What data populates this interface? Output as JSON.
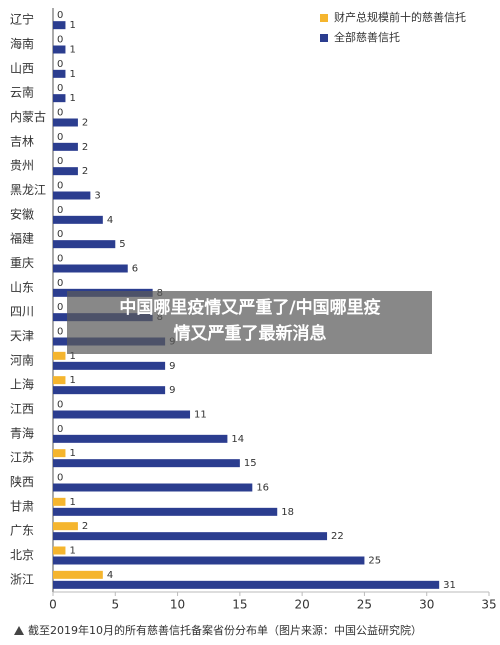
{
  "chart_data": {
    "type": "hbar",
    "categories": [
      "辽宁",
      "海南",
      "山西",
      "云南",
      "内蒙古",
      "吉林",
      "贵州",
      "黑龙江",
      "安徽",
      "福建",
      "重庆",
      "山东",
      "四川",
      "天津",
      "河南",
      "上海",
      "江西",
      "青海",
      "江苏",
      "陕西",
      "甘肃",
      "广东",
      "北京",
      "浙江"
    ],
    "series": [
      {
        "name": "财产总规模前十的慈善信托",
        "color": "#f5b52e",
        "values": [
          0,
          0,
          0,
          0,
          0,
          0,
          0,
          0,
          0,
          0,
          0,
          0,
          0,
          0,
          1,
          1,
          0,
          0,
          1,
          0,
          1,
          2,
          1,
          4
        ]
      },
      {
        "name": "全部慈善信托",
        "color": "#2b3d8f",
        "values": [
          1,
          1,
          1,
          1,
          2,
          2,
          2,
          3,
          4,
          5,
          6,
          8,
          8,
          9,
          9,
          9,
          11,
          14,
          15,
          16,
          18,
          22,
          25,
          31
        ]
      }
    ],
    "xlim": [
      0,
      35
    ],
    "xticks": [
      0,
      5,
      10,
      15,
      20,
      25,
      30,
      35
    ],
    "legend": "top-right",
    "overlay": [
      "中国哪里疫情又严重了/中国哪里疫",
      "情又严重了最新消息"
    ],
    "footnote": "截至2019年10月的所有慈善信托备案省份分布单（图片来源：中国公益研究院）"
  }
}
